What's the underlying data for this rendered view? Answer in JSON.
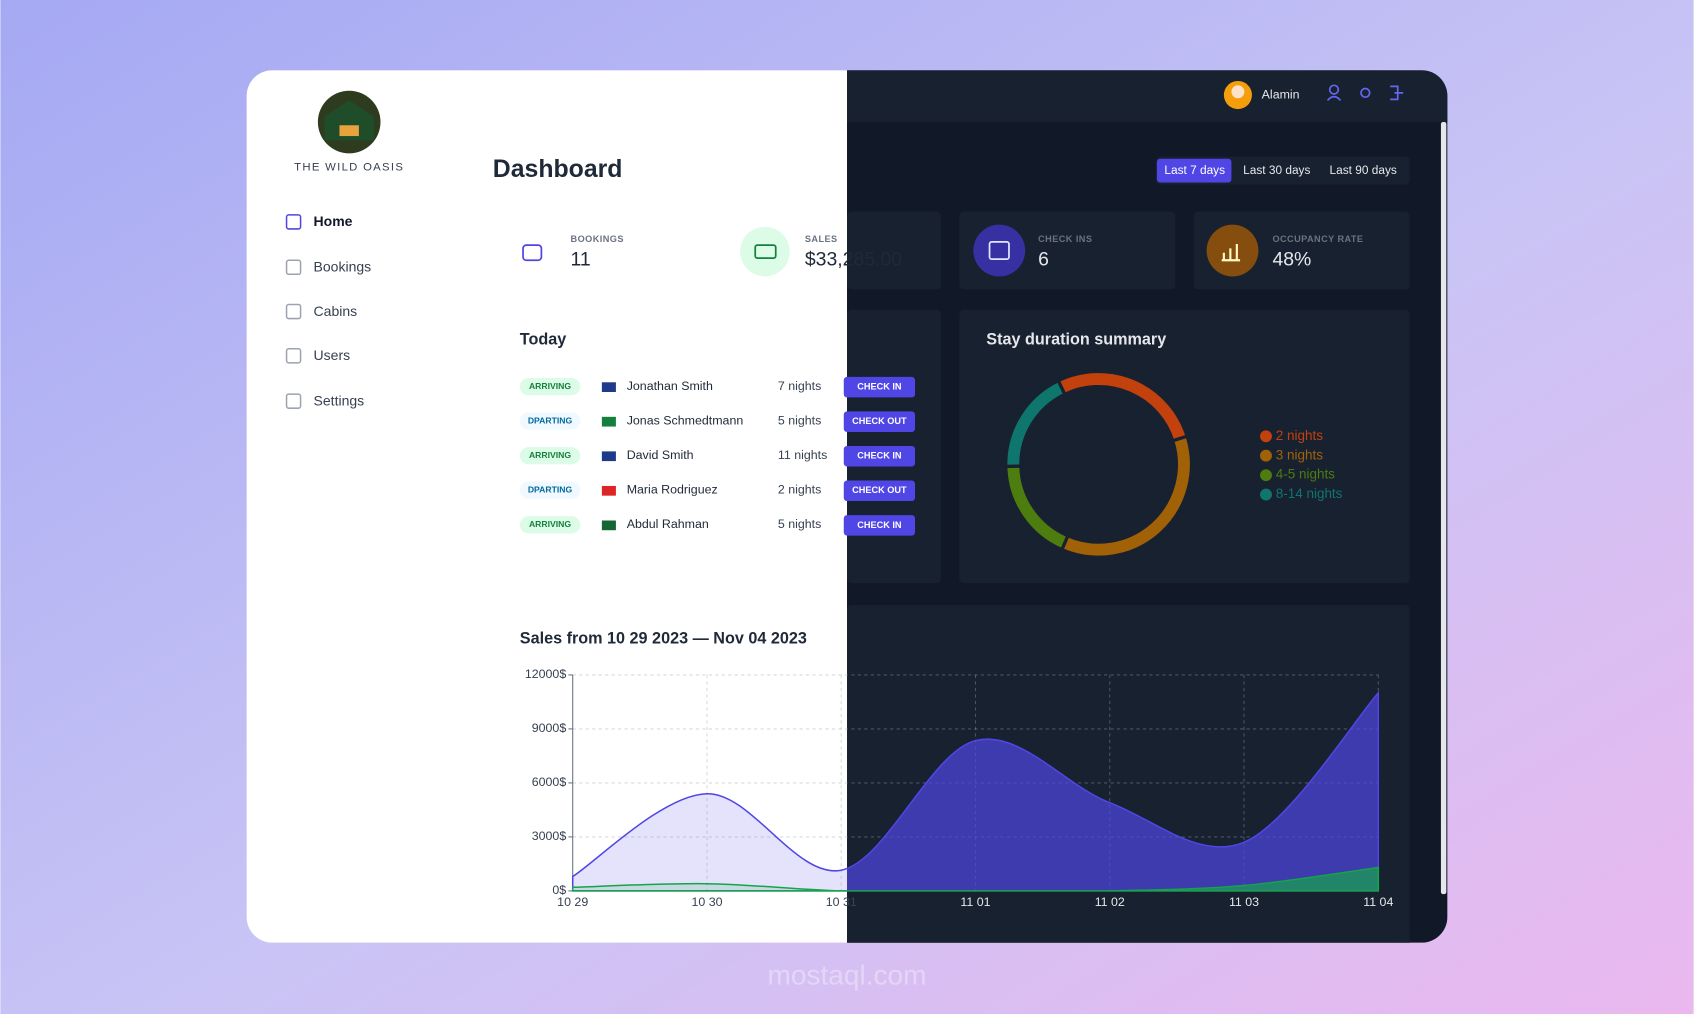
{
  "logo": {
    "text": "THE WILD OASIS"
  },
  "nav": [
    "Home",
    "Bookings",
    "Cabins",
    "Users",
    "Settings"
  ],
  "header": {
    "user": "Alamin"
  },
  "page_title": "Dashboard",
  "filters": [
    "Last 7 days",
    "Last 30 days",
    "Last 90 days"
  ],
  "stats": [
    {
      "label": "BOOKINGS",
      "value": "11"
    },
    {
      "label": "SALES",
      "value": "$33,285.00"
    },
    {
      "label": "CHECK INS",
      "value": "6"
    },
    {
      "label": "OCCUPANCY RATE",
      "value": "48%"
    }
  ],
  "today": {
    "title": "Today",
    "rows": [
      {
        "status": "ARRIVING",
        "name": "Jonathan Smith",
        "nights": "7 nights",
        "action": "CHECK IN"
      },
      {
        "status": "DPARTING",
        "name": "Jonas Schmedtmann",
        "nights": "5 nights",
        "action": "CHECK OUT"
      },
      {
        "status": "ARRIVING",
        "name": "David Smith",
        "nights": "11 nights",
        "action": "CHECK IN"
      },
      {
        "status": "DPARTING",
        "name": "Maria Rodriguez",
        "nights": "2 nights",
        "action": "CHECK OUT"
      },
      {
        "status": "ARRIVING",
        "name": "Abdul Rahman",
        "nights": "5 nights",
        "action": "CHECK IN"
      }
    ]
  },
  "watermark": "mostaql.com",
  "chart_data": [
    {
      "type": "pie",
      "title": "Stay duration summary",
      "categories": [
        "2 nights",
        "3 nights",
        "4-5 nights",
        "8-14 nights"
      ],
      "values": [
        3,
        4,
        2,
        2
      ],
      "colors": [
        "#c2410c",
        "#a16207",
        "#4d7c0f",
        "#0f766e"
      ]
    },
    {
      "type": "area",
      "title": "Sales from 10 29 2023 — Nov 04 2023",
      "x": [
        "10 29",
        "10 30",
        "10 31",
        "11 01",
        "11 02",
        "11 03",
        "11 04"
      ],
      "series": [
        {
          "color": "#4f46e5",
          "values": [
            800,
            5400,
            1150,
            8350,
            4900,
            2700,
            11000
          ]
        },
        {
          "color": "#16a34a",
          "values": [
            200,
            400,
            0,
            0,
            0,
            300,
            1300
          ]
        }
      ],
      "ylim": [
        0,
        12000
      ],
      "yticks": [
        {
          "value": 0,
          "label": "0$"
        },
        {
          "value": 3000,
          "label": "3000$"
        },
        {
          "value": 6000,
          "label": "6000$"
        },
        {
          "value": 9000,
          "label": "9000$"
        },
        {
          "value": 12000,
          "label": "12000$"
        }
      ],
      "grid": true
    }
  ]
}
